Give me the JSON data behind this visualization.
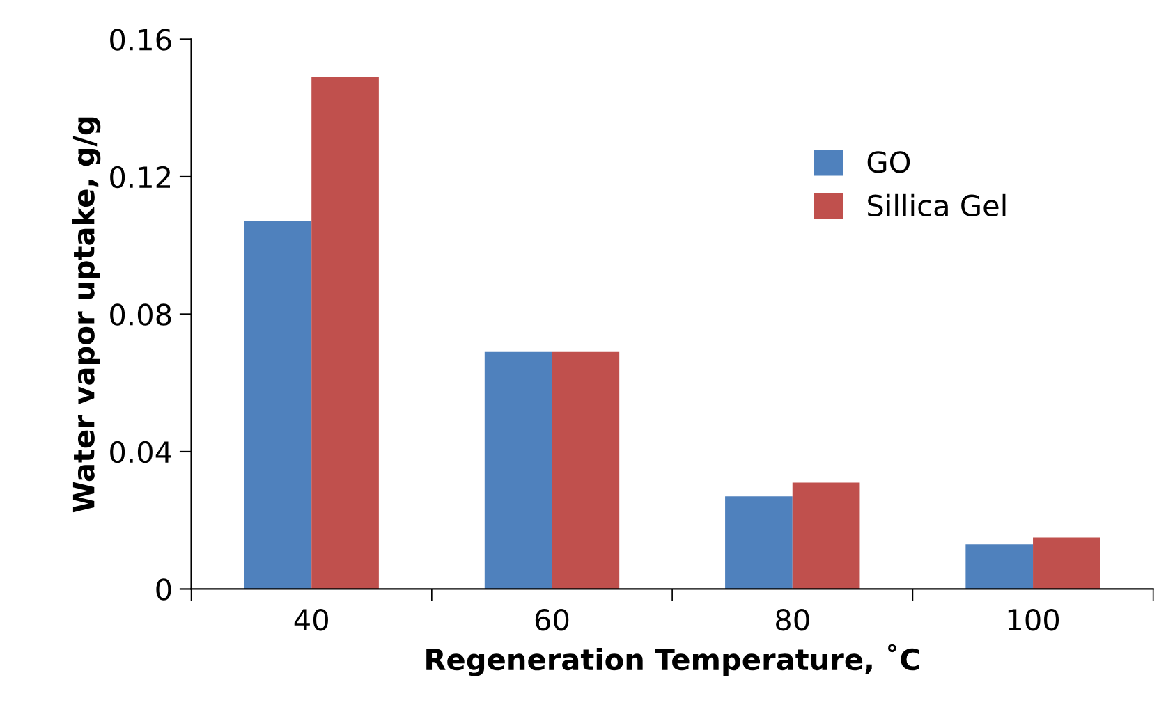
{
  "chart_data": {
    "type": "bar",
    "xlabel": "Regeneration Temperature, ˚C",
    "ylabel": "Water vapor uptake, g/g",
    "categories": [
      "40",
      "60",
      "80",
      "100"
    ],
    "series": [
      {
        "name": "GO",
        "color": "#4f81bd",
        "values": [
          0.107,
          0.069,
          0.027,
          0.013
        ]
      },
      {
        "name": "Sillica Gel",
        "color": "#c0504d",
        "values": [
          0.149,
          0.069,
          0.031,
          0.015
        ]
      }
    ],
    "ylim": [
      0,
      0.16
    ],
    "yticks": [
      {
        "value": 0,
        "label": "0"
      },
      0.04,
      0.08,
      0.12,
      0.16
    ],
    "grid": false,
    "legend": "top right"
  }
}
